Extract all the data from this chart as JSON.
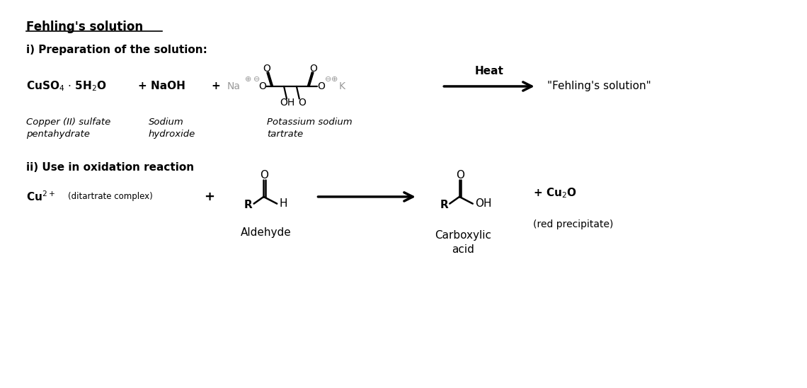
{
  "title": "Fehling's solution",
  "section1": "i) Preparation of the solution:",
  "section2": "ii) Use in oxidation reaction",
  "bg_color": "#ffffff",
  "text_color": "#000000",
  "gray_color": "#999999",
  "fig_width": 11.4,
  "fig_height": 5.48
}
